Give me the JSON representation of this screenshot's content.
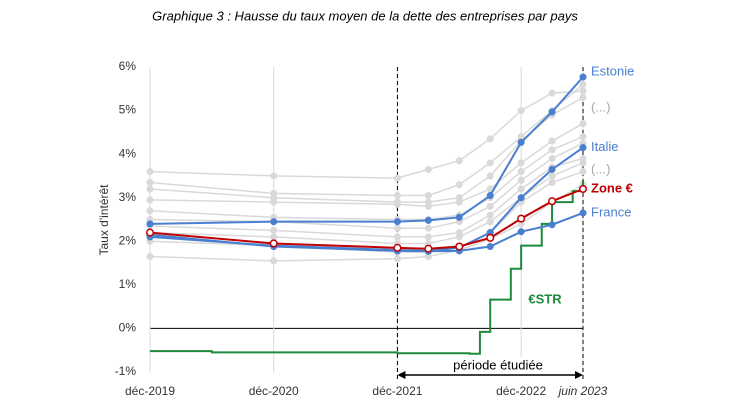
{
  "chart_data": {
    "type": "line",
    "title": "Graphique 3 : Hausse du taux moyen de la dette des entreprises par pays",
    "y_label": "Taux d'intérêt",
    "x": [
      "2019-12",
      "2020-12",
      "2021-12",
      "2022-03",
      "2022-06",
      "2022-09",
      "2022-12",
      "2023-03",
      "2023-06"
    ],
    "xlim": [
      "2019-12",
      "2023-06"
    ],
    "xticks": [
      {
        "value": "2019-12",
        "label": "déc-2019"
      },
      {
        "value": "2020-12",
        "label": "déc-2020"
      },
      {
        "value": "2021-12",
        "label": "déc-2021"
      },
      {
        "value": "2022-12",
        "label": "déc-2022"
      },
      {
        "value": "2023-06",
        "label": "juin 2023"
      }
    ],
    "ylim": [
      -1,
      6
    ],
    "yticks": [
      {
        "value": -1,
        "label": "-1%"
      },
      {
        "value": 0,
        "label": "0%"
      },
      {
        "value": 1,
        "label": "1%"
      },
      {
        "value": 2,
        "label": "2%"
      },
      {
        "value": 3,
        "label": "3%"
      },
      {
        "value": 4,
        "label": "4%"
      },
      {
        "value": 5,
        "label": "5%"
      },
      {
        "value": 6,
        "label": "6%"
      }
    ],
    "grid": "x",
    "period_label": "période étudiée",
    "annotations": [
      "(...)",
      "(...)"
    ],
    "series": [
      {
        "color": "#d9d9d9",
        "values": [
          3.6,
          3.5,
          3.45,
          3.65,
          3.85,
          4.35,
          5.0,
          5.4,
          5.45
        ]
      },
      {
        "color": "#d9d9d9",
        "values": [
          3.35,
          3.1,
          3.05,
          3.05,
          3.3,
          3.8,
          4.4,
          5.0,
          5.6
        ]
      },
      {
        "color": "#d9d9d9",
        "values": [
          3.2,
          3.0,
          2.9,
          2.9,
          3.0,
          3.5,
          4.3,
          4.9,
          5.3
        ]
      },
      {
        "color": "#d9d9d9",
        "values": [
          2.95,
          2.9,
          2.85,
          2.8,
          2.9,
          3.2,
          3.8,
          4.3,
          4.7
        ]
      },
      {
        "color": "#d9d9d9",
        "values": [
          2.7,
          2.55,
          2.5,
          2.5,
          2.6,
          3.0,
          3.6,
          4.1,
          4.4
        ]
      },
      {
        "color": "#d9d9d9",
        "values": [
          2.5,
          2.45,
          2.3,
          2.3,
          2.45,
          2.8,
          3.4,
          3.9,
          4.25
        ]
      },
      {
        "color": "#d9d9d9",
        "values": [
          2.35,
          2.25,
          2.1,
          2.1,
          2.2,
          2.6,
          3.2,
          3.7,
          3.9
        ]
      },
      {
        "color": "#d9d9d9",
        "values": [
          2.2,
          2.1,
          1.95,
          1.95,
          2.1,
          2.45,
          3.0,
          3.5,
          3.8
        ]
      },
      {
        "color": "#d9d9d9",
        "values": [
          2.0,
          1.9,
          1.75,
          1.75,
          1.85,
          2.2,
          2.9,
          3.35,
          3.6
        ]
      },
      {
        "color": "#d9d9d9",
        "values": [
          1.65,
          1.55,
          1.6,
          1.65,
          1.8,
          2.05,
          2.4,
          2.9,
          3.3
        ]
      },
      {
        "name": "€STR",
        "color": "#1e8a3c",
        "step": true,
        "x": [
          "2019-12",
          "2020-06",
          "2021-12",
          "2022-07",
          "2022-08",
          "2022-09",
          "2022-11",
          "2022-12",
          "2023-02",
          "2023-03",
          "2023-05",
          "2023-06"
        ],
        "values": [
          -0.52,
          -0.55,
          -0.57,
          -0.58,
          -0.08,
          0.66,
          1.37,
          1.9,
          2.4,
          2.9,
          3.15,
          3.4
        ]
      },
      {
        "name": "France",
        "color": "#4a7fd0",
        "values": [
          2.15,
          1.88,
          1.78,
          1.77,
          1.78,
          1.88,
          2.22,
          2.38,
          2.65
        ]
      },
      {
        "name": "Italie",
        "color": "#4a7fd0",
        "values": [
          2.1,
          1.9,
          1.8,
          1.78,
          1.85,
          2.2,
          3.0,
          3.65,
          4.15
        ]
      },
      {
        "name": "Zone €",
        "color": "#c00000",
        "hollow": true,
        "values": [
          2.2,
          1.95,
          1.85,
          1.83,
          1.88,
          2.08,
          2.52,
          2.92,
          3.2
        ]
      },
      {
        "name": "Estonie",
        "color": "#4a7fd0",
        "values": [
          2.4,
          2.45,
          2.45,
          2.48,
          2.55,
          3.05,
          4.27,
          4.97,
          5.77
        ]
      }
    ]
  }
}
